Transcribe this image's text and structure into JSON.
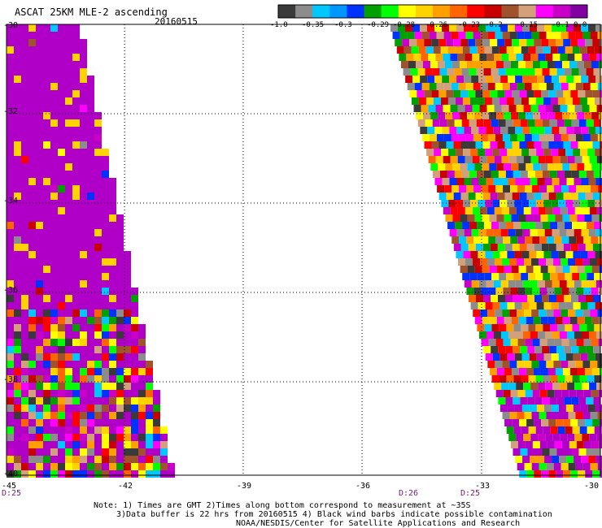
{
  "header": {
    "title": "ASCAT 25KM MLE-2 ascending",
    "date": "20160515"
  },
  "colorbar": {
    "ticks": [
      "-1.0",
      "-0.35",
      "-0.3",
      "-0.29",
      "-0.28",
      "-0.26",
      "-0.23",
      "-0.2",
      "-0.15",
      "-0.1",
      "0.0"
    ],
    "colors": [
      "#3a3a3a",
      "#8c8c8c",
      "#00c8ff",
      "#0096ff",
      "#0032ff",
      "#00a000",
      "#00ff00",
      "#ffff00",
      "#ffd200",
      "#ffa000",
      "#ff6400",
      "#ff0000",
      "#c80000",
      "#a0522d",
      "#d2a07a",
      "#ff00ff",
      "#c800c8",
      "#8000a0"
    ]
  },
  "axes": {
    "x_ticks": [
      "-45",
      "-42",
      "-39",
      "-36",
      "-33",
      "-30"
    ],
    "y_ticks": [
      "-30",
      "-32",
      "-34",
      "-36",
      "-38",
      "-40"
    ]
  },
  "times": [
    "D:25",
    "D:26",
    "D:25"
  ],
  "notes": [
    "Note: 1) Times are GMT 2)Times along bottom correspond to measurement at ~35S",
    "3)Data buffer is 22 hrs from 20160515 4) Black wind barbs indicate possible contamination",
    "NOAA/NESDIS/Center for Satellite Applications and Research"
  ]
}
